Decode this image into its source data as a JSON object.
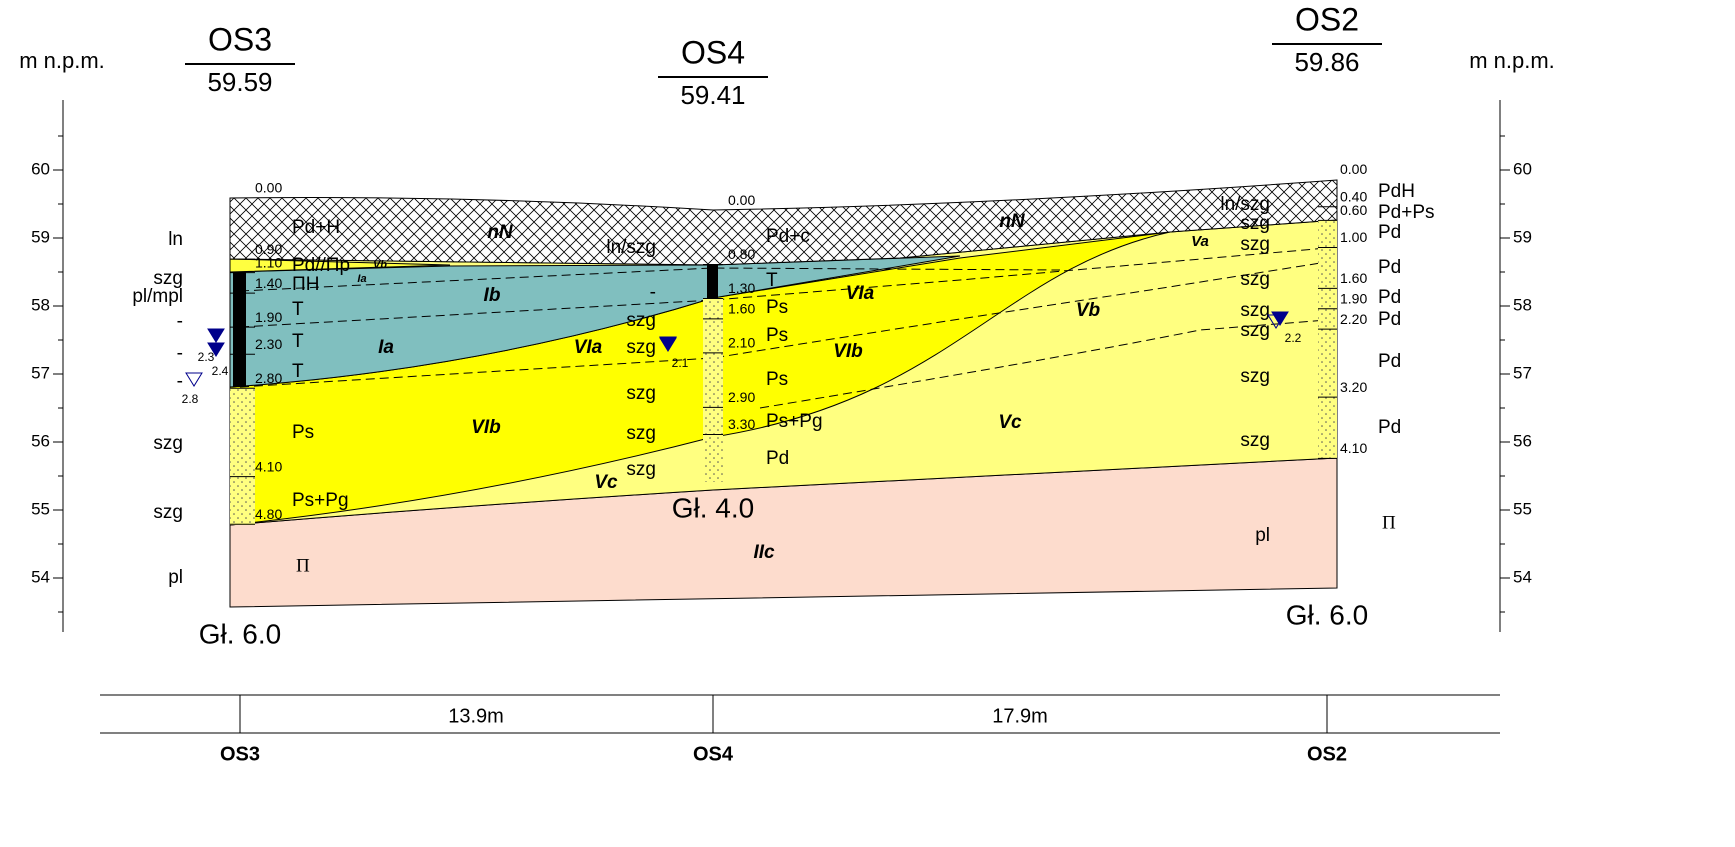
{
  "axis_label": "m n.p.m.",
  "elevation_ticks": [
    60,
    59,
    58,
    57,
    56,
    55,
    54
  ],
  "boreholes": [
    {
      "name": "OS3",
      "elevation": 59.59,
      "bottom_label": "Gł. 6.0",
      "depths": [
        "0.00",
        "0.90",
        "1.10",
        "1.40",
        "1.90",
        "2.30",
        "2.80",
        "4.10",
        "4.80"
      ],
      "soils": [
        "Pd+H",
        "Pd//Πp",
        "ΠH",
        "T",
        "T",
        "T",
        "Ps",
        "Ps+Pg",
        "Π"
      ],
      "states": [
        "ln",
        "szg",
        "pl/mpl",
        "-",
        "-",
        "-",
        "szg",
        "szg",
        "pl"
      ],
      "water": [
        "2.3",
        "2.4",
        "2.8"
      ]
    },
    {
      "name": "OS4",
      "elevation": 59.41,
      "bottom_label": "Gł. 4.0",
      "depths": [
        "0.00",
        "0.80",
        "1.30",
        "1.60",
        "2.10",
        "2.90",
        "3.30"
      ],
      "soils": [
        "Pd+c",
        "T",
        "Ps",
        "Ps",
        "Ps",
        "Ps+Pg",
        "Pd"
      ],
      "states": [
        "ln/szg",
        "-",
        "szg",
        "szg",
        "szg",
        "szg",
        "szg"
      ],
      "water": [
        "2.1"
      ]
    },
    {
      "name": "OS2",
      "elevation": 59.86,
      "bottom_label": "Gł. 6.0",
      "depths": [
        "0.00",
        "0.40",
        "0.60",
        "1.00",
        "1.60",
        "1.90",
        "2.20",
        "3.20",
        "4.10"
      ],
      "soils": [
        "PdH",
        "Pd+Ps",
        "Pd",
        "Pd",
        "Pd",
        "Pd",
        "Pd",
        "Pd",
        "Π"
      ],
      "states": [
        "ln/szg",
        "szg",
        "szg",
        "szg",
        "szg",
        "szg",
        "szg",
        "szg",
        "pl"
      ],
      "water": [
        "2.2"
      ]
    }
  ],
  "zones": [
    "nN",
    "nN",
    "Vb",
    "Ia",
    "Ib",
    "VIa",
    "Ia",
    "VIa",
    "VIb",
    "Va",
    "Vb",
    "VIb",
    "Vc",
    "Vc",
    "IIc"
  ],
  "distances": [
    "13.9m",
    "17.9m"
  ]
}
